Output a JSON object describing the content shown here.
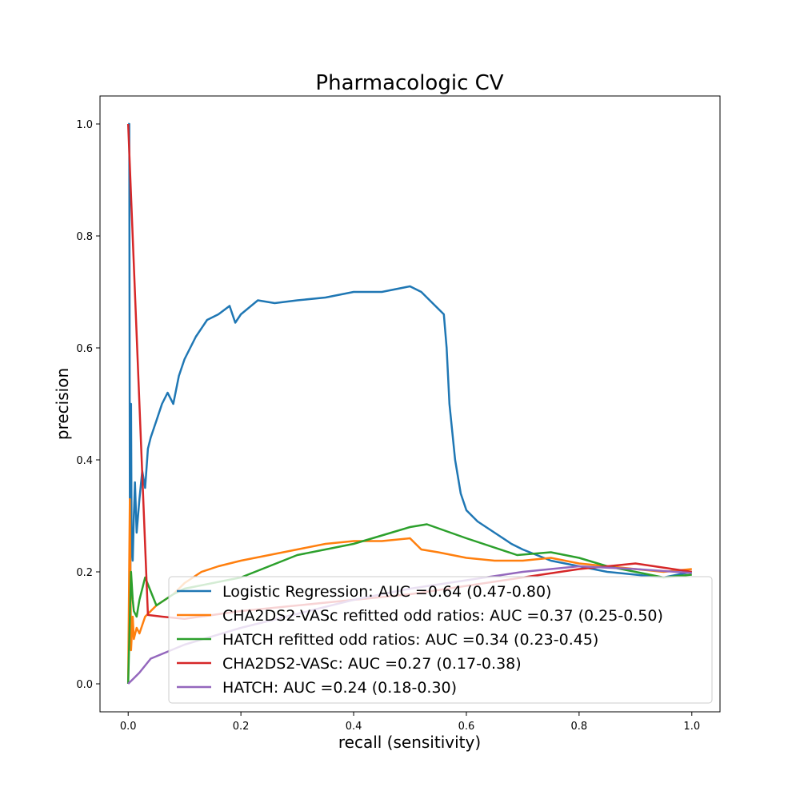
{
  "chart_data": {
    "type": "line",
    "title": "Pharmacologic CV",
    "xlabel": "recall (sensitivity)",
    "ylabel": "precision",
    "xlim": [
      -0.05,
      1.05
    ],
    "ylim": [
      -0.05,
      1.05
    ],
    "xticks": [
      0.0,
      0.2,
      0.4,
      0.6,
      0.8,
      1.0
    ],
    "yticks": [
      0.0,
      0.2,
      0.4,
      0.6,
      0.8,
      1.0
    ],
    "tick_labels": {
      "x": [
        "0.0",
        "0.2",
        "0.4",
        "0.6",
        "0.8",
        "1.0"
      ],
      "y": [
        "0.0",
        "0.2",
        "0.4",
        "0.6",
        "0.8",
        "1.0"
      ]
    },
    "grid": false,
    "legend_position": "lower-right",
    "series": [
      {
        "name": "Logistic Regression: AUC =0.64 (0.47-0.80)",
        "color": "#1f77b4",
        "x": [
          0.0,
          0.002,
          0.003,
          0.004,
          0.005,
          0.006,
          0.008,
          0.01,
          0.012,
          0.015,
          0.02,
          0.025,
          0.03,
          0.035,
          0.04,
          0.05,
          0.06,
          0.07,
          0.08,
          0.09,
          0.1,
          0.12,
          0.14,
          0.16,
          0.18,
          0.19,
          0.2,
          0.23,
          0.26,
          0.3,
          0.35,
          0.4,
          0.45,
          0.5,
          0.52,
          0.54,
          0.56,
          0.565,
          0.57,
          0.58,
          0.59,
          0.6,
          0.62,
          0.65,
          0.68,
          0.7,
          0.75,
          0.8,
          0.85,
          0.9,
          0.95,
          1.0
        ],
        "y": [
          1.0,
          1.0,
          0.33,
          0.2,
          0.5,
          0.25,
          0.22,
          0.3,
          0.36,
          0.27,
          0.33,
          0.38,
          0.35,
          0.42,
          0.44,
          0.47,
          0.5,
          0.52,
          0.5,
          0.55,
          0.58,
          0.62,
          0.65,
          0.66,
          0.675,
          0.645,
          0.66,
          0.685,
          0.68,
          0.685,
          0.69,
          0.7,
          0.7,
          0.71,
          0.7,
          0.68,
          0.66,
          0.6,
          0.5,
          0.4,
          0.34,
          0.31,
          0.29,
          0.27,
          0.25,
          0.24,
          0.22,
          0.21,
          0.2,
          0.195,
          0.19,
          0.2
        ]
      },
      {
        "name": "CHA2DS2-VASc refitted odd ratios: AUC =0.37 (0.25-0.50)",
        "color": "#ff7f0e",
        "x": [
          0.0,
          0.003,
          0.005,
          0.008,
          0.01,
          0.015,
          0.02,
          0.03,
          0.05,
          0.08,
          0.1,
          0.13,
          0.16,
          0.2,
          0.25,
          0.3,
          0.35,
          0.4,
          0.45,
          0.5,
          0.52,
          0.55,
          0.6,
          0.65,
          0.7,
          0.75,
          0.8,
          0.85,
          0.9,
          0.95,
          1.0
        ],
        "y": [
          0.0,
          0.33,
          0.06,
          0.12,
          0.08,
          0.1,
          0.09,
          0.12,
          0.14,
          0.16,
          0.18,
          0.2,
          0.21,
          0.22,
          0.23,
          0.24,
          0.25,
          0.255,
          0.255,
          0.26,
          0.24,
          0.235,
          0.225,
          0.22,
          0.22,
          0.225,
          0.215,
          0.21,
          0.205,
          0.2,
          0.205
        ]
      },
      {
        "name": "HATCH refitted odd ratios: AUC =0.34 (0.23-0.45)",
        "color": "#2ca02c",
        "x": [
          0.0,
          0.005,
          0.008,
          0.01,
          0.015,
          0.02,
          0.03,
          0.05,
          0.08,
          0.1,
          0.15,
          0.2,
          0.25,
          0.3,
          0.35,
          0.4,
          0.45,
          0.5,
          0.53,
          0.6,
          0.69,
          0.75,
          0.8,
          0.85,
          0.9,
          0.95,
          1.0
        ],
        "y": [
          0.0,
          0.2,
          0.15,
          0.13,
          0.12,
          0.15,
          0.19,
          0.14,
          0.16,
          0.17,
          0.18,
          0.19,
          0.21,
          0.23,
          0.24,
          0.25,
          0.265,
          0.28,
          0.285,
          0.26,
          0.23,
          0.235,
          0.225,
          0.21,
          0.2,
          0.19,
          0.195
        ]
      },
      {
        "name": "CHA2DS2-VASc: AUC =0.27 (0.17-0.38)",
        "color": "#d62728",
        "x": [
          0.0,
          0.035,
          0.06,
          0.08,
          0.1,
          0.2,
          0.3,
          0.4,
          0.5,
          0.6,
          0.7,
          0.8,
          0.9,
          1.0
        ],
        "y": [
          1.0,
          0.123,
          0.12,
          0.118,
          0.116,
          0.13,
          0.14,
          0.15,
          0.16,
          0.175,
          0.19,
          0.205,
          0.215,
          0.2
        ]
      },
      {
        "name": "HATCH: AUC =0.24 (0.18-0.30)",
        "color": "#9467bd",
        "x": [
          0.0,
          0.01,
          0.02,
          0.04,
          0.1,
          0.2,
          0.3,
          0.4,
          0.5,
          0.6,
          0.7,
          0.8,
          0.9,
          1.0
        ],
        "y": [
          0.0,
          0.01,
          0.02,
          0.045,
          0.07,
          0.1,
          0.125,
          0.15,
          0.17,
          0.185,
          0.2,
          0.21,
          0.205,
          0.198
        ]
      }
    ]
  }
}
